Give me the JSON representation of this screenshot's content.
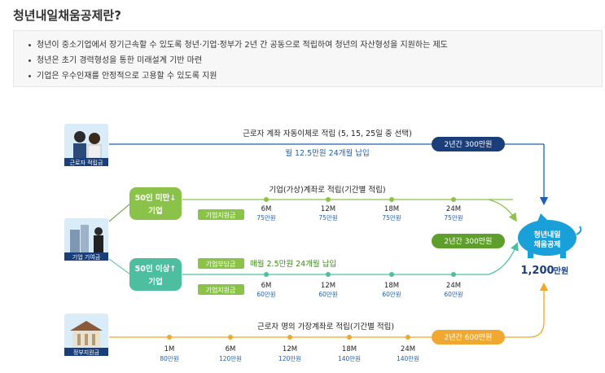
{
  "title": "청년내일채움공제란?",
  "intro": [
    "청년이 중소기업에서 장기근속할 수 있도록 청년·기업·정부가 2년 간 공동으로 적립하여 청년의 자산형성을 지원하는 제도",
    "청년은 초기 경력형성을 통한 미래설계 기반 마련",
    "기업은 우수인재를 안정적으로 고용할 수 있도록 지원"
  ],
  "worker": {
    "icon_label": "근로자 적립금",
    "route_label": "근로자 계좌 자동이체로 적립 (5, 15, 25일 중 선택)",
    "monthly": "월 12.5만원 24개월 납입",
    "total_badge": "2년간 300만원"
  },
  "company": {
    "icon_label": "기업 기여금",
    "route_label": "기업(가상)계좌로 적립(기간별 적립)",
    "small": {
      "label_line1": "50인 미만",
      "label_line2": "기업",
      "arrow": "↓",
      "support_tag": "기업지원금",
      "milestones": [
        {
          "m": "6M",
          "amt": "75만원"
        },
        {
          "m": "12M",
          "amt": "75만원"
        },
        {
          "m": "18M",
          "amt": "75만원"
        },
        {
          "m": "24M",
          "amt": "75만원"
        }
      ]
    },
    "total_badge": "2년간 300만원",
    "large": {
      "label_line1": "50인 이상",
      "label_line2": "기업",
      "arrow": "↑",
      "burden_tag": "기업부담금",
      "burden_text": "매월 2.5만원 24개월 납입",
      "support_tag": "기업지원금",
      "milestones": [
        {
          "m": "6M",
          "amt": "60만원"
        },
        {
          "m": "12M",
          "amt": "60만원"
        },
        {
          "m": "18M",
          "amt": "60만원"
        },
        {
          "m": "24M",
          "amt": "60만원"
        }
      ]
    }
  },
  "government": {
    "icon_label": "정부지원금",
    "route_label": "근로자 명의 가장계좌로 적립(기간별 적립)",
    "total_badge": "2년간 600만원",
    "milestones": [
      {
        "m": "1M",
        "amt": "80만원"
      },
      {
        "m": "6M",
        "amt": "120만원"
      },
      {
        "m": "12M",
        "amt": "120만원"
      },
      {
        "m": "18M",
        "amt": "140만원"
      },
      {
        "m": "24M",
        "amt": "140만원"
      }
    ]
  },
  "result": {
    "pig_line1": "청년내일",
    "pig_line2": "채움공제",
    "total_amount": "1,200",
    "total_unit": "만원"
  },
  "colors": {
    "blue": "#1f5fb0",
    "green": "#8bc34a",
    "dark_green": "#5e9e2a",
    "teal": "#4dbfa0",
    "orange": "#f0a830",
    "navy": "#1a3e7a",
    "pig": "#1aa0d8"
  }
}
